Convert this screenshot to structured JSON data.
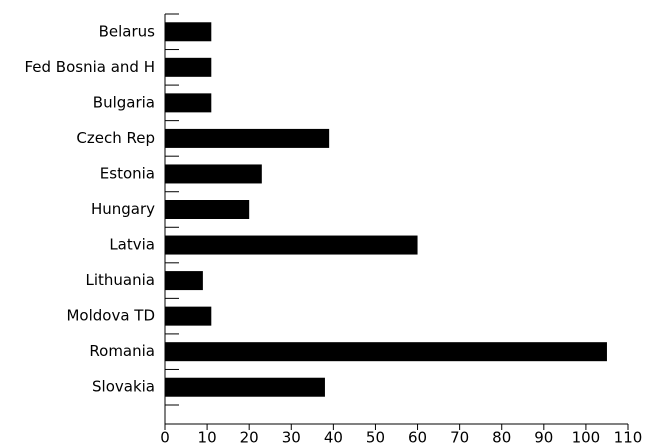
{
  "chart_data": {
    "type": "hbar",
    "categories": [
      "Belarus",
      "Fed Bosnia and H",
      "Bulgaria",
      "Czech Rep",
      "Estonia",
      "Hungary",
      "Latvia",
      "Lithuania",
      "Moldova TD",
      "Romania",
      "Slovakia"
    ],
    "values": [
      11,
      11,
      11,
      39,
      23,
      20,
      60,
      9,
      11,
      105,
      38
    ],
    "color": "#000000",
    "xlim": [
      0,
      110
    ],
    "xticks": [
      0,
      10,
      20,
      30,
      40,
      50,
      60,
      70,
      80,
      90,
      100,
      110
    ]
  }
}
